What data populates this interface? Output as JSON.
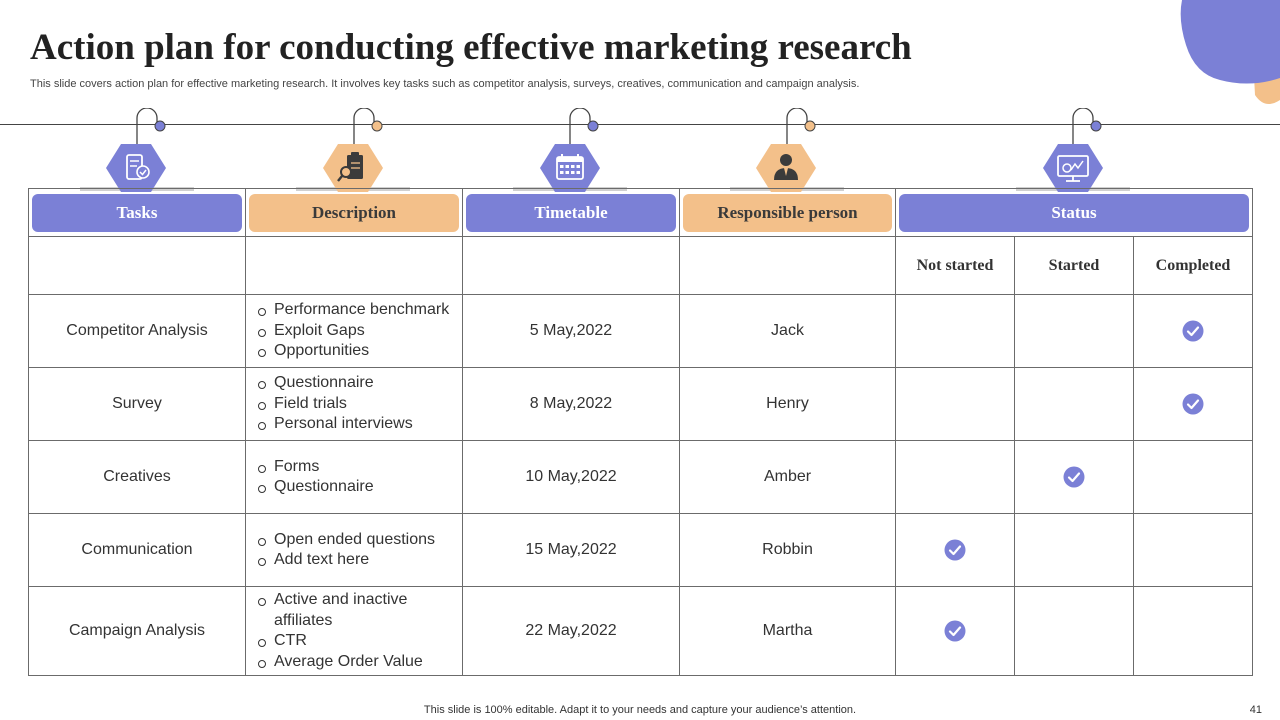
{
  "slide": {
    "title": "Action plan for conducting effective marketing research",
    "subtitle": "This slide covers action plan for effective marketing research. It involves key tasks such as competitor analysis, surveys, creatives, communication and campaign analysis.",
    "footer": "This slide is 100% editable. Adapt it to your needs and capture your audience’s attention.",
    "page_number": "41"
  },
  "colors": {
    "purple": "#7b80d6",
    "orange": "#f3c08a",
    "check": "#7b80d6"
  },
  "headers": {
    "tasks": "Tasks",
    "description": "Description",
    "timetable": "Timetable",
    "responsible": "Responsible person",
    "status": "Status"
  },
  "header_icons": [
    "task-tablet-icon",
    "clipboard-search-icon",
    "calendar-icon",
    "businessman-icon",
    "monitor-chart-icon"
  ],
  "status_columns": {
    "not_started": "Not started",
    "started": "Started",
    "completed": "Completed"
  },
  "rows": [
    {
      "task": "Competitor Analysis",
      "description": [
        "Performance benchmark",
        "Exploit Gaps",
        "Opportunities"
      ],
      "timetable": "5 May,2022",
      "person": "Jack",
      "status": "completed"
    },
    {
      "task": "Survey",
      "description": [
        "Questionnaire",
        "Field trials",
        "Personal interviews"
      ],
      "timetable": "8 May,2022",
      "person": "Henry",
      "status": "completed"
    },
    {
      "task": "Creatives",
      "description": [
        "Forms",
        "Questionnaire"
      ],
      "timetable": "10 May,2022",
      "person": "Amber",
      "status": "started"
    },
    {
      "task": "Communication",
      "description": [
        "Open ended questions",
        "Add text here"
      ],
      "timetable": "15 May,2022",
      "person": "Robbin",
      "status": "not_started"
    },
    {
      "task": "Campaign Analysis",
      "description": [
        "Active and inactive affiliates",
        "CTR",
        "Average Order Value"
      ],
      "timetable": "22 May,2022",
      "person": "Martha",
      "status": "not_started"
    }
  ]
}
